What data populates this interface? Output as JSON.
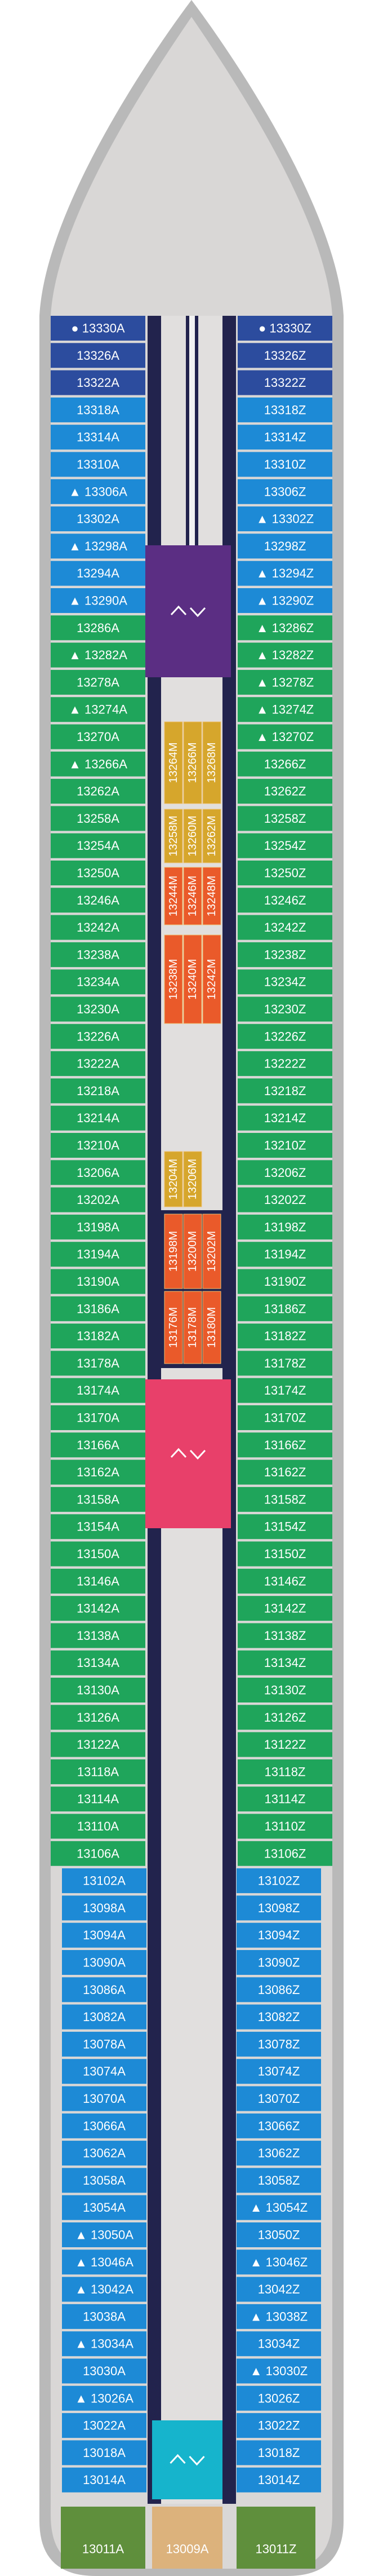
{
  "port_sections": [
    {
      "color": "#2c4c9e",
      "cabins": [
        "● 13330A",
        "13326A",
        "13322A"
      ]
    },
    {
      "color": "#1d8ad6",
      "cabins": [
        "13318A",
        "13314A",
        "13310A",
        "▲ 13306A",
        "13302A",
        "▲ 13298A",
        "13294A",
        "▲ 13290A"
      ]
    },
    {
      "color": "#1fa55b",
      "cabins": [
        "13286A",
        "▲ 13282A",
        "13278A",
        "▲ 13274A",
        "13270A",
        "▲ 13266A",
        "13262A",
        "13258A",
        "13254A",
        "13250A",
        "13246A",
        "13242A",
        "13238A",
        "13234A",
        "13230A",
        "13226A",
        "13222A",
        "13218A",
        "13214A",
        "13210A",
        "13206A",
        "13202A",
        "13198A",
        "13194A",
        "13190A",
        "13186A",
        "13182A",
        "13178A",
        "13174A",
        "13170A",
        "13166A",
        "13162A",
        "13158A",
        "13154A",
        "13150A",
        "13146A",
        "13142A",
        "13138A",
        "13134A",
        "13130A",
        "13126A",
        "13122A",
        "13118A",
        "13114A",
        "13110A",
        "13106A"
      ]
    },
    {
      "color": "#1d8ad6",
      "cabins": [
        "13102A",
        "13098A",
        "13094A",
        "13090A",
        "13086A",
        "13082A",
        "13078A",
        "13074A",
        "13070A",
        "13066A",
        "13062A",
        "13058A",
        "13054A",
        "▲ 13050A",
        "▲ 13046A",
        "▲ 13042A",
        "13038A",
        "▲ 13034A",
        "13030A",
        "▲ 13026A",
        "13022A",
        "13018A",
        "13014A"
      ]
    }
  ],
  "starboard_sections": [
    {
      "color": "#2c4c9e",
      "cabins": [
        "● 13330Z",
        "13326Z",
        "13322Z"
      ]
    },
    {
      "color": "#1d8ad6",
      "cabins": [
        "13318Z",
        "13314Z",
        "13310Z",
        "13306Z",
        "▲ 13302Z",
        "13298Z",
        "▲ 13294Z",
        "▲ 13290Z"
      ]
    },
    {
      "color": "#1fa55b",
      "cabins": [
        "▲ 13286Z",
        "▲ 13282Z",
        "▲ 13278Z",
        "▲ 13274Z",
        "▲ 13270Z",
        "13266Z",
        "13262Z",
        "13258Z",
        "13254Z",
        "13250Z",
        "13246Z",
        "13242Z",
        "13238Z",
        "13234Z",
        "13230Z",
        "13226Z",
        "13222Z",
        "13218Z",
        "13214Z",
        "13210Z",
        "13206Z",
        "13202Z",
        "13198Z",
        "13194Z",
        "13190Z",
        "13186Z",
        "13182Z",
        "13178Z",
        "13174Z",
        "13170Z",
        "13166Z",
        "13162Z",
        "13158Z",
        "13154Z",
        "13150Z",
        "13146Z",
        "13142Z",
        "13138Z",
        "13134Z",
        "13130Z",
        "13126Z",
        "13122Z",
        "13118Z",
        "13114Z",
        "13110Z",
        "13106Z"
      ]
    },
    {
      "color": "#1d8ad6",
      "cabins": [
        "13102Z",
        "13098Z",
        "13094Z",
        "13090Z",
        "13086Z",
        "13082Z",
        "13078Z",
        "13074Z",
        "13070Z",
        "13066Z",
        "13062Z",
        "13058Z",
        "▲ 13054Z",
        "13050Z",
        "▲ 13046Z",
        "13042Z",
        "▲ 13038Z",
        "13034Z",
        "▲ 13030Z",
        "13026Z",
        "13022Z",
        "13018Z",
        "13014Z"
      ]
    }
  ],
  "inner_groups": [
    {
      "color": "#d6a62c",
      "cabins": [
        "13264M",
        "13266M",
        "13268M"
      ]
    },
    {
      "color": "#d6a62c",
      "cabins": [
        "13258M",
        "13260M",
        "13262M"
      ]
    },
    {
      "color": "#ea5a2a",
      "cabins": [
        "13244M",
        "13246M",
        "13248M"
      ]
    },
    {
      "color": "#ea5a2a",
      "cabins": [
        "13238M",
        "13240M",
        "13242M"
      ]
    },
    {
      "color": "#d6a62c",
      "cabins": [
        "13204M",
        "13206M"
      ]
    },
    {
      "color": "#ea5a2a",
      "cabins": [
        "13198M",
        "13200M",
        "13202M"
      ]
    },
    {
      "color": "#ea5a2a",
      "cabins": [
        "13176M",
        "13178M",
        "13180M"
      ]
    }
  ],
  "stairs": [
    {
      "color": "#5b2e83"
    },
    {
      "color": "#e8406a"
    },
    {
      "color": "#16b4cc"
    }
  ],
  "aft_cabins": [
    {
      "label": "13011A",
      "color": "#5f8f3c"
    },
    {
      "label": "13009A",
      "color": "#dcb27c"
    },
    {
      "label": "13011Z",
      "color": "#5f8f3c"
    }
  ]
}
